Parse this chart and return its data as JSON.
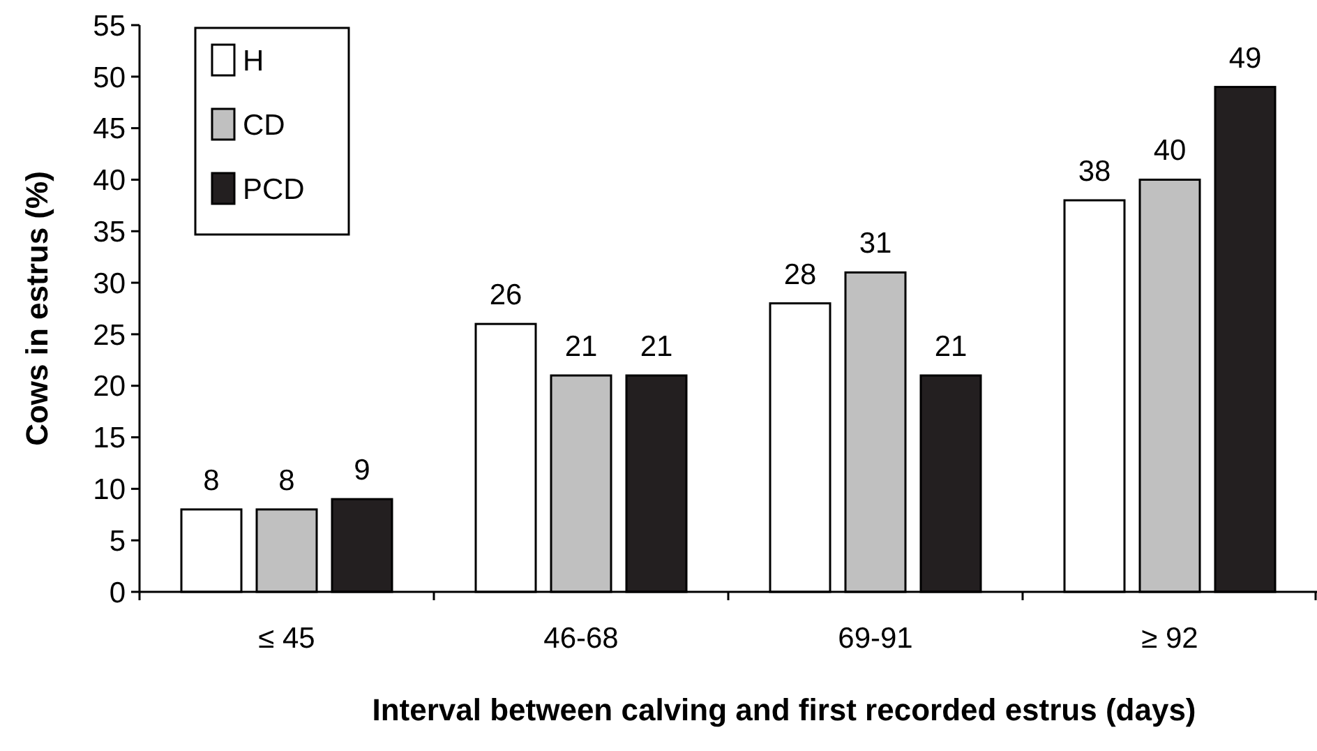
{
  "chart_data": {
    "type": "bar",
    "xlabel": "Interval between calving and first recorded estrus (days)",
    "ylabel": "Cows in estrus (%)",
    "categories": [
      "≤ 45",
      "46-68",
      "69-91",
      "≥ 92"
    ],
    "series": [
      {
        "name": "H",
        "color": "#ffffff",
        "values": [
          8,
          26,
          28,
          38
        ]
      },
      {
        "name": "CD",
        "color": "#c0c0c0",
        "values": [
          8,
          21,
          31,
          40
        ]
      },
      {
        "name": "PCD",
        "color": "#231f20",
        "values": [
          9,
          21,
          21,
          49
        ]
      }
    ],
    "ylim": [
      0,
      55
    ],
    "yticks": [
      0,
      5,
      10,
      15,
      20,
      25,
      30,
      35,
      40,
      45,
      50,
      55
    ],
    "grid": false,
    "legend": "top left",
    "data_labels": true
  }
}
